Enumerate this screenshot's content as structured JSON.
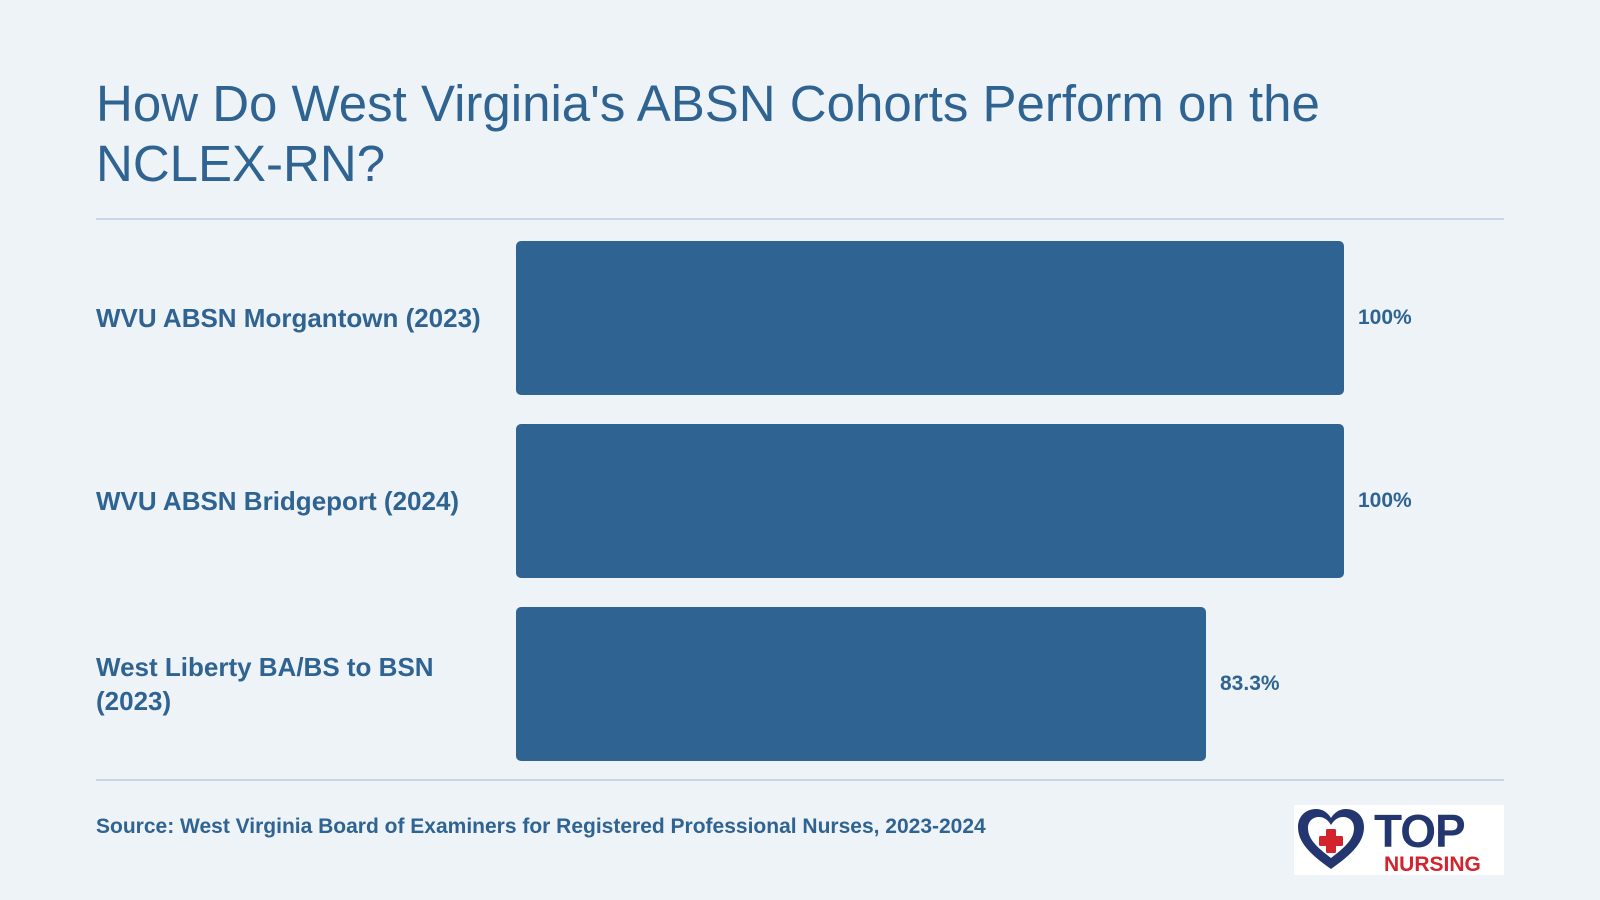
{
  "title": "How Do West Virginia's ABSN Cohorts Perform on the NCLEX-RN?",
  "source": "Source: West Virginia Board of Examiners for Registered Professional Nurses, 2023-2024",
  "logo": {
    "top": "TOP",
    "bottom": "NURSING",
    "icon": "heart-cross-icon",
    "colors": {
      "navy": "#23366f",
      "red": "#d3232d"
    }
  },
  "colors": {
    "background": "#eef3f7",
    "bar": "#2f6391",
    "text": "#2f6391",
    "rule": "#c9d6e6"
  },
  "chart_data": {
    "type": "bar",
    "orientation": "horizontal",
    "title": "How Do West Virginia's ABSN Cohorts Perform on the NCLEX-RN?",
    "categories": [
      "WVU ABSN Morgantown (2023)",
      "WVU ABSN Bridgeport (2024)",
      "West Liberty BA/BS to BSN (2023)"
    ],
    "values": [
      100,
      100,
      83.3
    ],
    "value_labels": [
      "100%",
      "100%",
      "83.3%"
    ],
    "unit": "%",
    "xlim": [
      0,
      100
    ],
    "grid": false,
    "legend": "none"
  }
}
